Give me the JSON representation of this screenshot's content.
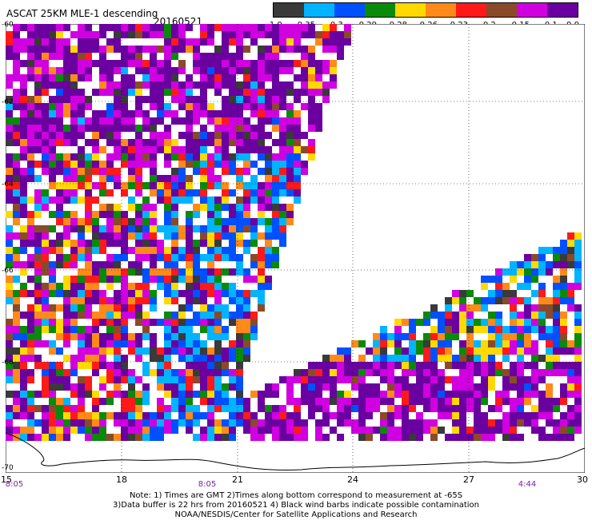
{
  "header": {
    "title": "ASCAT 25KM MLE-1 descending",
    "date": "20160521"
  },
  "colorbar": {
    "colors": [
      "#3a3a3a",
      "#00b4ff",
      "#0050ff",
      "#0a8a0a",
      "#ffd900",
      "#ff8a1a",
      "#ff1a1a",
      "#8a4a2a",
      "#d000e0",
      "#6a00a0"
    ],
    "labels": [
      "-1.0",
      "-0.35",
      "-0.3",
      "-0.29",
      "-0.28",
      "-0.26",
      "-0.23",
      "-0.2",
      "-0.15",
      "-0.1",
      "0.0"
    ]
  },
  "map": {
    "lat_labels": [
      "-60",
      "-62",
      "-64",
      "-66",
      "-68",
      "-70"
    ],
    "lon_labels": [
      "15",
      "18",
      "21",
      "24",
      "27",
      "30"
    ],
    "time_labels": [
      "8:05",
      "8:05",
      "4:44"
    ]
  },
  "footer": {
    "note_line1": "Note: 1) Times are GMT 2)Times along bottom correspond to measurement at -65S",
    "note_line2": "3)Data buffer is 22 hrs from 20160521 4) Black wind barbs indicate possible contamination",
    "note_line3": "NOAA/NESDIS/Center for Satellite Applications and Research"
  }
}
